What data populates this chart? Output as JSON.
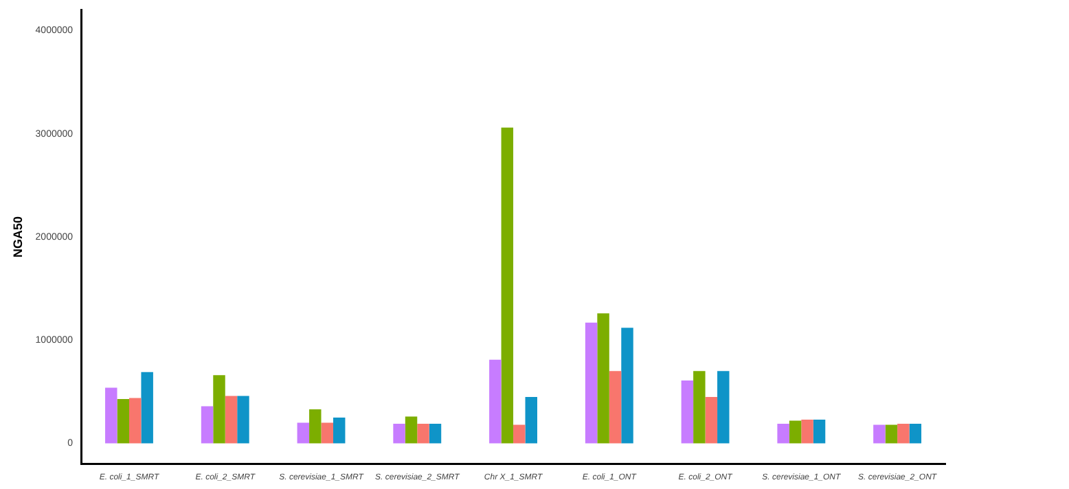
{
  "chart_data": {
    "type": "bar",
    "ylabel": "NGA50",
    "categories": [
      "E. coli_1_SMRT",
      "E. coli_2_SMRT",
      "S. cerevisiae_1_SMRT",
      "S. cerevisiae_2_SMRT",
      "Chr X_1_SMRT",
      "E. coli_1_ONT",
      "E. coli_2_ONT",
      "S. cerevisiae_1_ONT",
      "S. cerevisiae_2_ONT"
    ],
    "series": [
      {
        "color": "#c77cff",
        "values": [
          540000,
          360000,
          200000,
          190000,
          810000,
          1170000,
          610000,
          190000,
          180000
        ]
      },
      {
        "color": "#7cae00",
        "values": [
          430000,
          660000,
          330000,
          260000,
          3060000,
          1260000,
          700000,
          220000,
          180000
        ]
      },
      {
        "color": "#f8766d",
        "values": [
          440000,
          460000,
          200000,
          190000,
          180000,
          700000,
          450000,
          230000,
          190000
        ]
      },
      {
        "color": "#0f94c8",
        "values": [
          690000,
          460000,
          250000,
          190000,
          450000,
          1120000,
          700000,
          230000,
          190000
        ]
      }
    ],
    "ylim": [
      -200000,
      4200000
    ],
    "yticks": [
      0,
      1000000,
      2000000,
      3000000,
      4000000
    ],
    "grid": false,
    "legend": false
  }
}
